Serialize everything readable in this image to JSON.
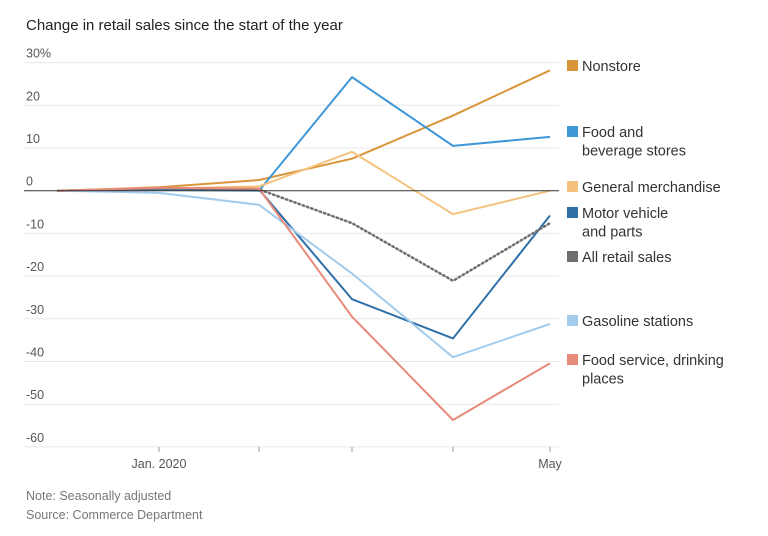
{
  "chart_data": {
    "type": "line",
    "title": "Change in retail sales since the start of the year",
    "x": [
      "2019-12",
      "2020-01",
      "2020-02",
      "2020-03",
      "2020-04",
      "2020-05"
    ],
    "x_tick_labels": [
      {
        "x": "2020-01",
        "label": "Jan. 2020"
      },
      {
        "x": "2020-05",
        "label": "May"
      }
    ],
    "y_ticks": [
      {
        "value": 30,
        "label": "30%"
      },
      {
        "value": 20,
        "label": "20"
      },
      {
        "value": 10,
        "label": "10"
      },
      {
        "value": 0,
        "label": "0"
      },
      {
        "value": -10,
        "label": "-10"
      },
      {
        "value": -20,
        "label": "-20"
      },
      {
        "value": -30,
        "label": "-30"
      },
      {
        "value": -40,
        "label": "-40"
      },
      {
        "value": -50,
        "label": "-50"
      },
      {
        "value": -60,
        "label": "-60"
      }
    ],
    "ylim": [
      -60,
      30
    ],
    "grid": true,
    "legend_placement": "right",
    "series": [
      {
        "name": "Nonstore",
        "label_lines": [
          "Nonstore"
        ],
        "color": "#d9953a",
        "dash": false,
        "values": [
          0,
          0.8,
          2.5,
          7.5,
          17.6,
          28.2
        ]
      },
      {
        "name": "Food and beverage stores",
        "label_lines": [
          "Food and",
          "beverage stores"
        ],
        "color": "#3f97d8",
        "dash": false,
        "values": [
          0,
          0.2,
          0,
          26.6,
          10.5,
          12.6
        ]
      },
      {
        "name": "General merchandise",
        "label_lines": [
          "General merchandise"
        ],
        "color": "#f5c27e",
        "dash": false,
        "values": [
          0,
          0.5,
          1,
          9.1,
          -5.5,
          0
        ]
      },
      {
        "name": "Motor vehicle and parts",
        "label_lines": [
          "Motor vehicle",
          "and parts"
        ],
        "color": "#2e6fa8",
        "dash": false,
        "values": [
          0,
          0.5,
          0.3,
          -25.4,
          -34.6,
          -5.8
        ]
      },
      {
        "name": "All retail sales",
        "label_lines": [
          "All retail sales"
        ],
        "color": "#6f6f6f",
        "dash": true,
        "values": [
          0,
          0.5,
          0.3,
          -7.6,
          -21.1,
          -7.6
        ]
      },
      {
        "name": "Gasoline stations",
        "label_lines": [
          "Gasoline stations"
        ],
        "color": "#a3cbec",
        "dash": false,
        "values": [
          0,
          -0.5,
          -3.3,
          -19.4,
          -39,
          -31.2
        ]
      },
      {
        "name": "Food service, drinking places",
        "label_lines": [
          "Food service, drinking",
          "places"
        ],
        "color": "#e88a78",
        "dash": false,
        "values": [
          0,
          0.7,
          0.5,
          -29.5,
          -53.7,
          -40.4
        ]
      }
    ]
  },
  "notes": {
    "note": "Note: Seasonally adjusted",
    "source": "Source: Commerce Department"
  }
}
